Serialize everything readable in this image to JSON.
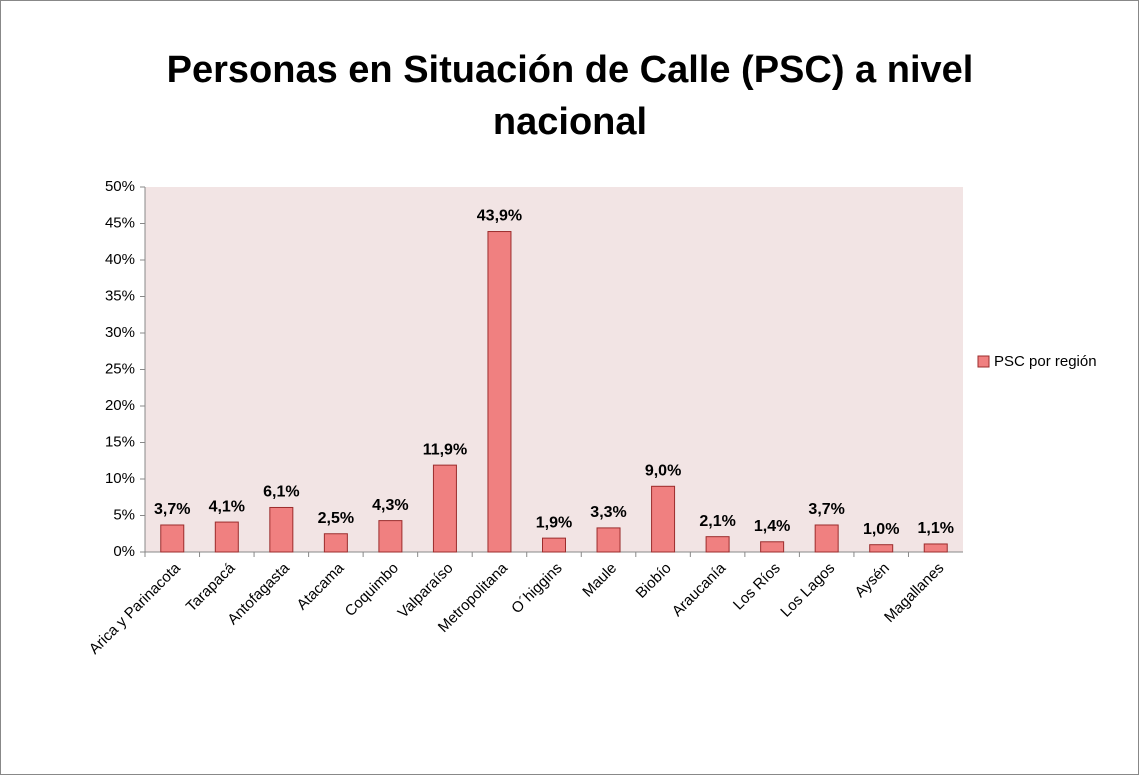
{
  "chart_data": {
    "type": "bar",
    "title": "Personas en Situación de Calle (PSC) a nivel nacional",
    "categories": [
      "Arica y Parinacota",
      "Tarapacá",
      "Antofagasta",
      "Atacama",
      "Coquimbo",
      "Valparaíso",
      "Metropolitana",
      "O´higgins",
      "Maule",
      "Biobío",
      "Araucanía",
      "Los Ríos",
      "Los Lagos",
      "Aysén",
      "Magallanes"
    ],
    "series": [
      {
        "name": "PSC por región",
        "color": "#f08080",
        "values": [
          3.7,
          4.1,
          6.1,
          2.5,
          4.3,
          11.9,
          43.9,
          1.9,
          3.3,
          9.0,
          2.1,
          1.4,
          3.7,
          1.0,
          1.1
        ],
        "value_labels": [
          "3,7%",
          "4,1%",
          "6,1%",
          "2,5%",
          "4,3%",
          "11,9%",
          "43,9%",
          "1,9%",
          "3,3%",
          "9,0%",
          "2,1%",
          "1,4%",
          "3,7%",
          "1,0%",
          "1,1%"
        ]
      }
    ],
    "ylim": [
      0,
      50
    ],
    "yticks": [
      {
        "value": 0,
        "label": "0%"
      },
      {
        "value": 5,
        "label": "5%"
      },
      {
        "value": 10,
        "label": "10%"
      },
      {
        "value": 15,
        "label": "15%"
      },
      {
        "value": 20,
        "label": "20%"
      },
      {
        "value": 25,
        "label": "25%"
      },
      {
        "value": 30,
        "label": "30%"
      },
      {
        "value": 35,
        "label": "35%"
      },
      {
        "value": 40,
        "label": "40%"
      },
      {
        "value": 45,
        "label": "45%"
      },
      {
        "value": 50,
        "label": "50%"
      }
    ],
    "legend": "right"
  }
}
